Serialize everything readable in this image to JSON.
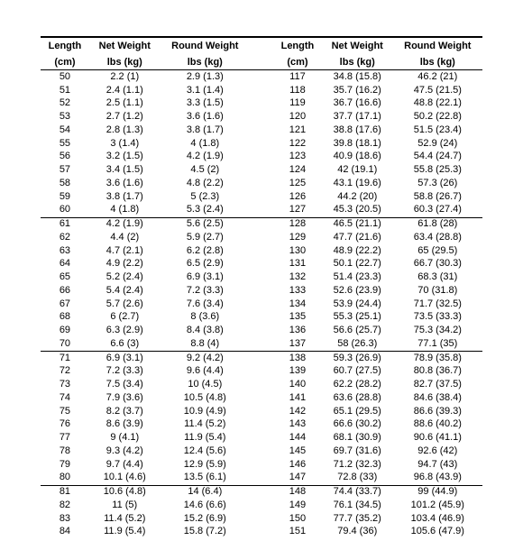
{
  "headers": {
    "length_top": "Length",
    "length_bot": "(cm)",
    "net_top": "Net Weight",
    "net_bot": "lbs (kg)",
    "round_top": "Round Weight",
    "round_bot": "lbs (kg)"
  },
  "breaks_after_left": [
    60,
    70,
    80
  ],
  "breaks_after_right": [
    127,
    137,
    147
  ],
  "left": [
    {
      "len": 50,
      "net": "2.2 (1)",
      "round": "2.9 (1.3)"
    },
    {
      "len": 51,
      "net": "2.4 (1.1)",
      "round": "3.1 (1.4)"
    },
    {
      "len": 52,
      "net": "2.5 (1.1)",
      "round": "3.3 (1.5)"
    },
    {
      "len": 53,
      "net": "2.7 (1.2)",
      "round": "3.6 (1.6)"
    },
    {
      "len": 54,
      "net": "2.8 (1.3)",
      "round": "3.8 (1.7)"
    },
    {
      "len": 55,
      "net": "3 (1.4)",
      "round": "4 (1.8)"
    },
    {
      "len": 56,
      "net": "3.2 (1.5)",
      "round": "4.2 (1.9)"
    },
    {
      "len": 57,
      "net": "3.4 (1.5)",
      "round": "4.5 (2)"
    },
    {
      "len": 58,
      "net": "3.6 (1.6)",
      "round": "4.8 (2.2)"
    },
    {
      "len": 59,
      "net": "3.8 (1.7)",
      "round": "5 (2.3)"
    },
    {
      "len": 60,
      "net": "4 (1.8)",
      "round": "5.3 (2.4)"
    },
    {
      "len": 61,
      "net": "4.2 (1.9)",
      "round": "5.6 (2.5)"
    },
    {
      "len": 62,
      "net": "4.4 (2)",
      "round": "5.9 (2.7)"
    },
    {
      "len": 63,
      "net": "4.7 (2.1)",
      "round": "6.2 (2.8)"
    },
    {
      "len": 64,
      "net": "4.9 (2.2)",
      "round": "6.5 (2.9)"
    },
    {
      "len": 65,
      "net": "5.2 (2.4)",
      "round": "6.9 (3.1)"
    },
    {
      "len": 66,
      "net": "5.4 (2.4)",
      "round": "7.2 (3.3)"
    },
    {
      "len": 67,
      "net": "5.7 (2.6)",
      "round": "7.6 (3.4)"
    },
    {
      "len": 68,
      "net": "6 (2.7)",
      "round": "8 (3.6)"
    },
    {
      "len": 69,
      "net": "6.3 (2.9)",
      "round": "8.4 (3.8)"
    },
    {
      "len": 70,
      "net": "6.6 (3)",
      "round": "8.8 (4)"
    },
    {
      "len": 71,
      "net": "6.9 (3.1)",
      "round": "9.2 (4.2)"
    },
    {
      "len": 72,
      "net": "7.2 (3.3)",
      "round": "9.6 (4.4)"
    },
    {
      "len": 73,
      "net": "7.5 (3.4)",
      "round": "10 (4.5)"
    },
    {
      "len": 74,
      "net": "7.9 (3.6)",
      "round": "10.5 (4.8)"
    },
    {
      "len": 75,
      "net": "8.2 (3.7)",
      "round": "10.9 (4.9)"
    },
    {
      "len": 76,
      "net": "8.6 (3.9)",
      "round": "11.4 (5.2)"
    },
    {
      "len": 77,
      "net": "9 (4.1)",
      "round": "11.9 (5.4)"
    },
    {
      "len": 78,
      "net": "9.3 (4.2)",
      "round": "12.4 (5.6)"
    },
    {
      "len": 79,
      "net": "9.7 (4.4)",
      "round": "12.9 (5.9)"
    },
    {
      "len": 80,
      "net": "10.1 (4.6)",
      "round": "13.5 (6.1)"
    },
    {
      "len": 81,
      "net": "10.6 (4.8)",
      "round": "14 (6.4)"
    },
    {
      "len": 82,
      "net": "11 (5)",
      "round": "14.6 (6.6)"
    },
    {
      "len": 83,
      "net": "11.4 (5.2)",
      "round": "15.2 (6.9)"
    },
    {
      "len": 84,
      "net": "11.9 (5.4)",
      "round": "15.8 (7.2)"
    }
  ],
  "right": [
    {
      "len": 117,
      "net": "34.8 (15.8)",
      "round": "46.2 (21)"
    },
    {
      "len": 118,
      "net": "35.7 (16.2)",
      "round": "47.5 (21.5)"
    },
    {
      "len": 119,
      "net": "36.7 (16.6)",
      "round": "48.8 (22.1)"
    },
    {
      "len": 120,
      "net": "37.7 (17.1)",
      "round": "50.2 (22.8)"
    },
    {
      "len": 121,
      "net": "38.8 (17.6)",
      "round": "51.5 (23.4)"
    },
    {
      "len": 122,
      "net": "39.8 (18.1)",
      "round": "52.9 (24)"
    },
    {
      "len": 123,
      "net": "40.9 (18.6)",
      "round": "54.4 (24.7)"
    },
    {
      "len": 124,
      "net": "42 (19.1)",
      "round": "55.8 (25.3)"
    },
    {
      "len": 125,
      "net": "43.1 (19.6)",
      "round": "57.3 (26)"
    },
    {
      "len": 126,
      "net": "44.2 (20)",
      "round": "58.8 (26.7)"
    },
    {
      "len": 127,
      "net": "45.3 (20.5)",
      "round": "60.3 (27.4)"
    },
    {
      "len": 128,
      "net": "46.5 (21.1)",
      "round": "61.8 (28)"
    },
    {
      "len": 129,
      "net": "47.7 (21.6)",
      "round": "63.4 (28.8)"
    },
    {
      "len": 130,
      "net": "48.9 (22.2)",
      "round": "65 (29.5)"
    },
    {
      "len": 131,
      "net": "50.1 (22.7)",
      "round": "66.7 (30.3)"
    },
    {
      "len": 132,
      "net": "51.4 (23.3)",
      "round": "68.3 (31)"
    },
    {
      "len": 133,
      "net": "52.6 (23.9)",
      "round": "70 (31.8)"
    },
    {
      "len": 134,
      "net": "53.9 (24.4)",
      "round": "71.7 (32.5)"
    },
    {
      "len": 135,
      "net": "55.3 (25.1)",
      "round": "73.5 (33.3)"
    },
    {
      "len": 136,
      "net": "56.6 (25.7)",
      "round": "75.3 (34.2)"
    },
    {
      "len": 137,
      "net": "58 (26.3)",
      "round": "77.1 (35)"
    },
    {
      "len": 138,
      "net": "59.3 (26.9)",
      "round": "78.9 (35.8)"
    },
    {
      "len": 139,
      "net": "60.7 (27.5)",
      "round": "80.8 (36.7)"
    },
    {
      "len": 140,
      "net": "62.2 (28.2)",
      "round": "82.7 (37.5)"
    },
    {
      "len": 141,
      "net": "63.6 (28.8)",
      "round": "84.6 (38.4)"
    },
    {
      "len": 142,
      "net": "65.1 (29.5)",
      "round": "86.6 (39.3)"
    },
    {
      "len": 143,
      "net": "66.6 (30.2)",
      "round": "88.6 (40.2)"
    },
    {
      "len": 144,
      "net": "68.1 (30.9)",
      "round": "90.6 (41.1)"
    },
    {
      "len": 145,
      "net": "69.7 (31.6)",
      "round": "92.6 (42)"
    },
    {
      "len": 146,
      "net": "71.2 (32.3)",
      "round": "94.7 (43)"
    },
    {
      "len": 147,
      "net": "72.8 (33)",
      "round": "96.8 (43.9)"
    },
    {
      "len": 148,
      "net": "74.4 (33.7)",
      "round": "99 (44.9)"
    },
    {
      "len": 149,
      "net": "76.1 (34.5)",
      "round": "101.2 (45.9)"
    },
    {
      "len": 150,
      "net": "77.7 (35.2)",
      "round": "103.4 (46.9)"
    },
    {
      "len": 151,
      "net": "79.4 (36)",
      "round": "105.6 (47.9)"
    }
  ]
}
